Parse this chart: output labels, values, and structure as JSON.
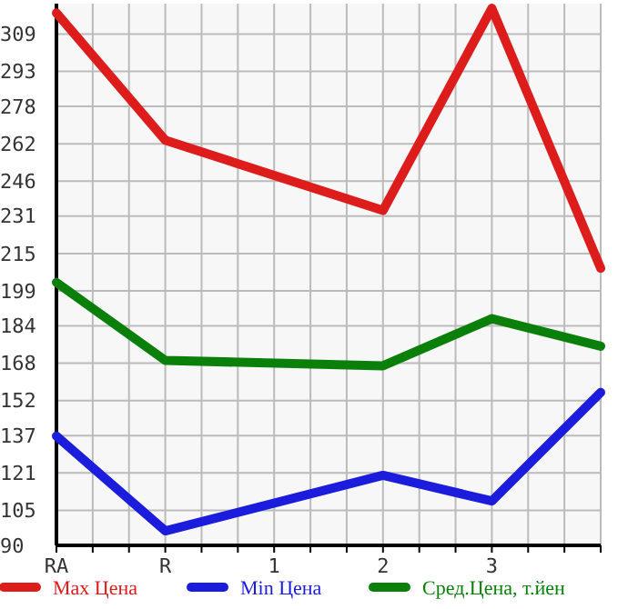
{
  "chart_data": {
    "type": "line",
    "categories": [
      "RA",
      "R",
      "1",
      "2",
      "3",
      null
    ],
    "series": [
      {
        "name": "Max Цена",
        "color": "#dd1c1c",
        "values": [
          318,
          263.5,
          null,
          233.4,
          320,
          208.7
        ]
      },
      {
        "name": "Min Цена",
        "color": "#1c1cdd",
        "values": [
          136.8,
          96.2,
          null,
          120,
          109,
          155.5
        ]
      },
      {
        "name": "Сред.Цена, т.йен",
        "color": "#0a800a",
        "values": [
          202.6,
          169.2,
          null,
          166.9,
          187.1,
          175.3
        ]
      }
    ],
    "ylim": [
      90,
      322
    ],
    "yticks": [
      90,
      105,
      121,
      137,
      152,
      168,
      184,
      199,
      215,
      231,
      246,
      262,
      278,
      293,
      309
    ],
    "grid": true,
    "legend": "bottom",
    "marker": "none",
    "line_style": "solid"
  }
}
